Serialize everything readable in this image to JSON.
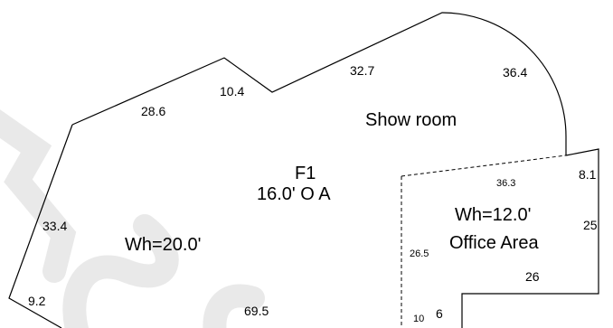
{
  "plan": {
    "colors": {
      "outline": "#000000",
      "text": "#000000",
      "watermark": "#c8c8c8"
    },
    "main_room": {
      "name": "Show room",
      "floor_label": "F1",
      "overall_label": "16.0' O A",
      "wall_height": "Wh=20.0'"
    },
    "office": {
      "name": "Office Area",
      "wall_height": "Wh=12.0'"
    },
    "dimensions": {
      "d_28_6": "28.6",
      "d_10_4": "10.4",
      "d_32_7": "32.7",
      "d_36_4": "36.4",
      "d_33_4": "33.4",
      "d_9_2": "9.2",
      "d_69_5": "69.5",
      "d_36_3": "36.3",
      "d_8_1": "8.1",
      "d_25": "25",
      "d_26_5": "26.5",
      "d_26": "26",
      "d_10": "10",
      "d_6": "6"
    }
  }
}
